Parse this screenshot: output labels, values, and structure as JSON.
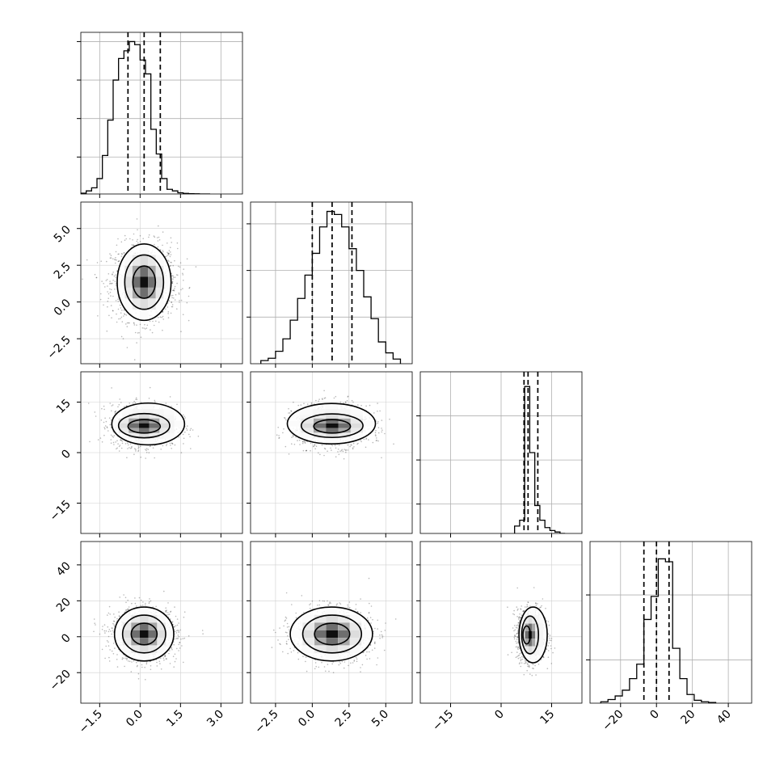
{
  "chart_data": {
    "type": "corner",
    "grid": true,
    "parameters": [
      {
        "xlim": [
          -2.2,
          3.8
        ],
        "ylim": [
          -3.6,
          6.8
        ],
        "ticks": [
          -1.5,
          0.0,
          1.5,
          3.0
        ],
        "tick_labels": [
          "−1.5",
          "0.0",
          "1.5",
          "3.0"
        ],
        "quantiles": [
          -0.45,
          0.15,
          0.75
        ]
      },
      {
        "xlim": [
          -4.2,
          6.8
        ],
        "ylim": [
          -4.2,
          6.8
        ],
        "ticks": [
          -2.5,
          0.0,
          2.5,
          5.0
        ],
        "tick_labels": [
          "−2.5",
          "0.0",
          "2.5",
          "5.0"
        ],
        "quantiles": [
          0.0,
          1.35,
          2.7
        ]
      },
      {
        "xlim": [
          -24,
          24
        ],
        "ylim": [
          -24,
          24
        ],
        "ticks": [
          -15,
          0,
          15
        ],
        "tick_labels": [
          "−15",
          "0",
          "15"
        ],
        "quantiles": [
          6.8,
          8.0,
          10.9
        ]
      },
      {
        "xlim": [
          -37,
          53
        ],
        "ylim": [
          -37,
          53
        ],
        "ticks": [
          -20,
          0,
          20,
          40
        ],
        "tick_labels": [
          "−20",
          "0",
          "20",
          "40"
        ],
        "quantiles": [
          -7,
          0,
          7
        ]
      }
    ],
    "histograms": [
      {
        "bin_edges": [
          -2.2,
          -2.0,
          -1.8,
          -1.6,
          -1.4,
          -1.2,
          -1.0,
          -0.8,
          -0.6,
          -0.4,
          -0.2,
          0.0,
          0.2,
          0.4,
          0.6,
          0.8,
          1.0,
          1.2,
          1.4,
          1.6,
          1.8,
          2.0,
          2.2,
          2.4,
          2.6
        ],
        "counts": [
          0.005,
          0.02,
          0.04,
          0.1,
          0.25,
          0.48,
          0.74,
          0.88,
          0.93,
          0.99,
          0.97,
          0.87,
          0.78,
          0.42,
          0.26,
          0.1,
          0.03,
          0.02,
          0.008,
          0.004,
          0.002,
          0.001,
          0.0,
          0.0
        ],
        "ymax": 1.05,
        "yticks": [
          0.24,
          0.49,
          0.74,
          0.99
        ]
      },
      {
        "bin_edges": [
          -3.5,
          -3.0,
          -2.5,
          -2.0,
          -1.5,
          -1.0,
          -0.5,
          0.0,
          0.5,
          1.0,
          1.5,
          2.0,
          2.5,
          3.0,
          3.5,
          4.0,
          4.5,
          5.0,
          5.5,
          6.0
        ],
        "counts": [
          0.02,
          0.035,
          0.08,
          0.16,
          0.28,
          0.42,
          0.57,
          0.71,
          0.88,
          0.98,
          0.96,
          0.88,
          0.74,
          0.6,
          0.43,
          0.29,
          0.14,
          0.07,
          0.03
        ],
        "ymax": 1.04,
        "yticks": [
          0.3,
          0.6,
          0.9
        ]
      },
      {
        "bin_edges": [
          4.0,
          5.5,
          7.0,
          8.5,
          10.0,
          11.5,
          13.0,
          14.5,
          16.0,
          17.5,
          19.0
        ],
        "counts": [
          0.05,
          0.09,
          1.0,
          0.55,
          0.19,
          0.09,
          0.04,
          0.02,
          0.01,
          0.0
        ],
        "ymax": 1.1,
        "yticks": [
          0.2,
          0.5,
          0.8
        ]
      },
      {
        "bin_edges": [
          -31,
          -27,
          -23,
          -19,
          -15,
          -11,
          -7,
          -3,
          1,
          5,
          9,
          13,
          17,
          21,
          25,
          29,
          33
        ],
        "counts": [
          0.01,
          0.025,
          0.05,
          0.09,
          0.17,
          0.27,
          0.58,
          0.74,
          1.0,
          0.98,
          0.38,
          0.17,
          0.06,
          0.02,
          0.01,
          0.005
        ],
        "ymax": 1.12,
        "yticks": [
          0.3,
          0.75
        ]
      }
    ],
    "scatter_panels": [
      {
        "xi": 0,
        "yi": 1,
        "mx": 0.15,
        "my": 1.35,
        "sx": 0.58,
        "sy": 1.25,
        "contours": [
          {
            "rx": 1.0,
            "ry": 2.6,
            "cx": 0.15,
            "cy": 1.35
          },
          {
            "rx": 0.72,
            "ry": 1.85,
            "cx": 0.15,
            "cy": 1.35
          },
          {
            "rx": 0.42,
            "ry": 1.1,
            "cx": 0.15,
            "cy": 1.35
          }
        ]
      },
      {
        "xi": 0,
        "yi": 2,
        "mx": 0.15,
        "my": 8.0,
        "sx": 0.58,
        "sy": 3.0,
        "contours": [
          {
            "rx": 1.35,
            "ry": 6.2,
            "cx": 0.3,
            "cy": 8.5
          },
          {
            "rx": 0.95,
            "ry": 3.6,
            "cx": 0.15,
            "cy": 8.0
          },
          {
            "rx": 0.6,
            "ry": 2.0,
            "cx": 0.15,
            "cy": 7.8
          }
        ]
      },
      {
        "xi": 1,
        "yi": 2,
        "mx": 1.35,
        "my": 8.0,
        "sx": 1.25,
        "sy": 3.0,
        "contours": [
          {
            "rx": 3.0,
            "ry": 6.0,
            "cx": 1.3,
            "cy": 8.6
          },
          {
            "rx": 2.1,
            "ry": 3.5,
            "cx": 1.35,
            "cy": 8.0
          },
          {
            "rx": 1.25,
            "ry": 2.0,
            "cx": 1.35,
            "cy": 7.8
          }
        ]
      },
      {
        "xi": 0,
        "yi": 3,
        "mx": 0.15,
        "my": 1.0,
        "sx": 0.58,
        "sy": 7.0,
        "contours": [
          {
            "rx": 1.1,
            "ry": 15.0,
            "cx": 0.15,
            "cy": 1.5
          },
          {
            "rx": 0.8,
            "ry": 10.5,
            "cx": 0.15,
            "cy": 1.5
          },
          {
            "rx": 0.48,
            "ry": 6.0,
            "cx": 0.15,
            "cy": 1.5
          }
        ]
      },
      {
        "xi": 1,
        "yi": 3,
        "mx": 1.35,
        "my": 1.0,
        "sx": 1.25,
        "sy": 7.0,
        "contours": [
          {
            "rx": 2.8,
            "ry": 15.0,
            "cx": 1.3,
            "cy": 1.5
          },
          {
            "rx": 2.0,
            "ry": 10.5,
            "cx": 1.35,
            "cy": 1.5
          },
          {
            "rx": 1.2,
            "ry": 6.0,
            "cx": 1.35,
            "cy": 1.5
          }
        ]
      },
      {
        "xi": 2,
        "yi": 3,
        "mx": 9.0,
        "my": 1.0,
        "sx": 2.0,
        "sy": 7.0,
        "contours": [
          {
            "rx": 4.2,
            "ry": 15.5,
            "cx": 9.5,
            "cy": 1.0
          },
          {
            "rx": 2.5,
            "ry": 10.5,
            "cx": 8.6,
            "cy": 1.0
          },
          {
            "rx": 1.1,
            "ry": 5.0,
            "cx": 7.6,
            "cy": 1.0
          }
        ]
      }
    ]
  }
}
